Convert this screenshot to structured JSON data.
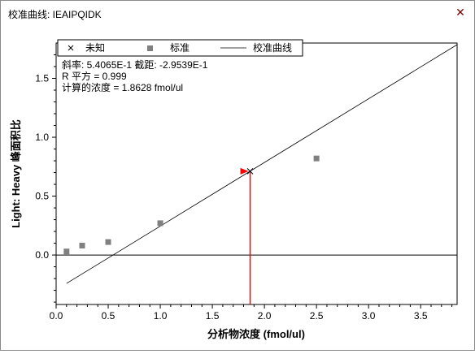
{
  "window": {
    "title": "校准曲线: IEAIPQIDK",
    "close_glyph": "✕"
  },
  "legend": {
    "unknown_label": "未知",
    "standard_label": "标准",
    "curve_label": "校准曲线"
  },
  "stats": {
    "line1": "斜率: 5.4065E-1 截距: -2.9539E-1",
    "line2": "R 平方 = 0.999",
    "line3": "计算的浓度 = 1.8628 fmol/ul"
  },
  "colors": {
    "standard_marker": "#808080",
    "unknown_marker": "#000000",
    "curve": "#000000",
    "projection": "#ff0000"
  },
  "chart_data": {
    "type": "scatter",
    "xlabel": "分析物浓度 (fmol/ul)",
    "ylabel": "Light: Heavy 峰面积比",
    "xlim": [
      0,
      3.85
    ],
    "ylim": [
      -0.42,
      1.8
    ],
    "x_ticks": [
      "0.0",
      "0.5",
      "1.0",
      "1.5",
      "2.0",
      "2.5",
      "3.0",
      "3.5"
    ],
    "x_tick_values": [
      0,
      0.5,
      1,
      1.5,
      2,
      2.5,
      3,
      3.5
    ],
    "y_ticks": [
      "0.0",
      "0.5",
      "1.0",
      "1.5"
    ],
    "y_tick_values": [
      0,
      0.5,
      1,
      1.5
    ],
    "series": [
      {
        "name": "标准",
        "marker": "square",
        "points": [
          {
            "x": 0.1,
            "y": 0.03
          },
          {
            "x": 0.25,
            "y": 0.08
          },
          {
            "x": 0.5,
            "y": 0.11
          },
          {
            "x": 1.0,
            "y": 0.27
          },
          {
            "x": 2.5,
            "y": 0.82
          }
        ]
      },
      {
        "name": "未知",
        "marker": "x",
        "points": [
          {
            "x": 1.8628,
            "y": 0.7117
          }
        ]
      }
    ],
    "curve": {
      "name": "校准曲线",
      "slope": 0.54065,
      "intercept": -0.29539,
      "x_start": 0.1,
      "x_end": 3.85
    },
    "projection": {
      "x": 1.8628,
      "y": 0.7117
    }
  }
}
